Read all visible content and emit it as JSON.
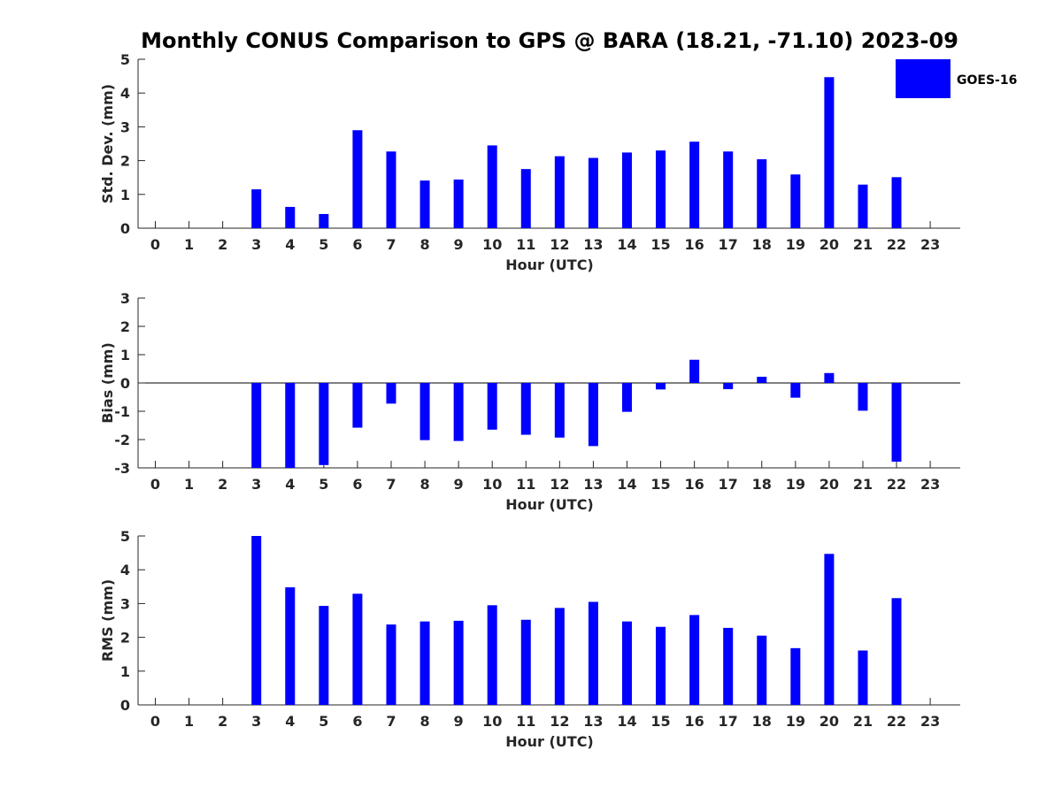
{
  "title": "Monthly CONUS Comparison to GPS @ BARA (18.21, -71.10) 2023-09",
  "legend": {
    "label": "GOES-16",
    "color": "#0000ff",
    "placement": "top-right"
  },
  "chart_data": [
    {
      "type": "bar",
      "title": "",
      "xlabel": "Hour (UTC)",
      "ylabel": "Std. Dev. (mm)",
      "categories": [
        "0",
        "1",
        "2",
        "3",
        "4",
        "5",
        "6",
        "7",
        "8",
        "9",
        "10",
        "11",
        "12",
        "13",
        "14",
        "15",
        "16",
        "17",
        "18",
        "19",
        "20",
        "21",
        "22",
        "23"
      ],
      "series": [
        {
          "name": "GOES-16",
          "values": [
            null,
            null,
            null,
            1.15,
            0.63,
            0.42,
            2.9,
            2.27,
            1.41,
            1.44,
            2.45,
            1.75,
            2.13,
            2.08,
            2.24,
            2.3,
            2.56,
            2.27,
            2.04,
            1.59,
            4.47,
            1.29,
            1.51,
            null
          ]
        }
      ],
      "ylim": [
        0,
        5
      ],
      "yticks": [
        0,
        1,
        2,
        3,
        4,
        5
      ],
      "zero_line": false
    },
    {
      "type": "bar",
      "title": "",
      "xlabel": "Hour (UTC)",
      "ylabel": "Bias (mm)",
      "categories": [
        "0",
        "1",
        "2",
        "3",
        "4",
        "5",
        "6",
        "7",
        "8",
        "9",
        "10",
        "11",
        "12",
        "13",
        "14",
        "15",
        "16",
        "17",
        "18",
        "19",
        "20",
        "21",
        "22",
        "23"
      ],
      "series": [
        {
          "name": "GOES-16",
          "values": [
            null,
            null,
            null,
            -3.0,
            -3.0,
            -2.9,
            -1.58,
            -0.73,
            -2.02,
            -2.05,
            -1.65,
            -1.83,
            -1.93,
            -2.23,
            -1.02,
            -0.23,
            0.82,
            -0.22,
            0.22,
            -0.52,
            0.35,
            -0.98,
            -2.78,
            null
          ]
        }
      ],
      "ylim": [
        -3,
        3
      ],
      "yticks": [
        -3,
        -2,
        -1,
        0,
        1,
        2,
        3
      ],
      "zero_line": true
    },
    {
      "type": "bar",
      "title": "",
      "xlabel": "Hour (UTC)",
      "ylabel": "RMS (mm)",
      "categories": [
        "0",
        "1",
        "2",
        "3",
        "4",
        "5",
        "6",
        "7",
        "8",
        "9",
        "10",
        "11",
        "12",
        "13",
        "14",
        "15",
        "16",
        "17",
        "18",
        "19",
        "20",
        "21",
        "22",
        "23"
      ],
      "series": [
        {
          "name": "GOES-16",
          "values": [
            null,
            null,
            null,
            5.0,
            3.48,
            2.93,
            3.29,
            2.38,
            2.47,
            2.49,
            2.95,
            2.52,
            2.87,
            3.05,
            2.47,
            2.31,
            2.66,
            2.28,
            2.05,
            1.68,
            4.47,
            1.61,
            3.16,
            null
          ]
        }
      ],
      "ylim": [
        0,
        5
      ],
      "yticks": [
        0,
        1,
        2,
        3,
        4,
        5
      ],
      "zero_line": false
    }
  ]
}
